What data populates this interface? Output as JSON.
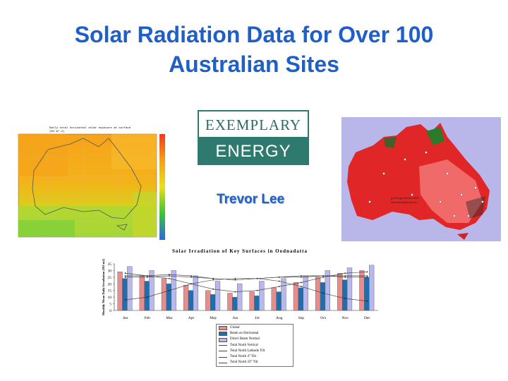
{
  "slide": {
    "title_line1": "Solar Radiation Data for Over 100",
    "title_line2": "Australian Sites",
    "author": "Trevor Lee",
    "title_color": "#1f5fc8"
  },
  "logo": {
    "top": "EXEMPLARY",
    "bottom": "ENERGY",
    "color": "#2e7a6e"
  },
  "left_map": {
    "heading_line1": "Daily total horizontal solar exposure at surface",
    "heading_line2": "(MJ m^-2)"
  },
  "right_map": {
    "credit_line1": "(c) Energy Partners 2006",
    "credit_line2": "www.exemplary.com.au"
  },
  "chart_data": {
    "type": "bar",
    "title": "Solar Irradiation of Key Surfaces in Oodnadatta",
    "ylabel": "Monthly Mean Daily Irradiation (MJ/m2)",
    "ylim": [
      0,
      35
    ],
    "yticks": [
      "0",
      "5",
      "10",
      "15",
      "20",
      "25",
      "30",
      "35"
    ],
    "categories": [
      "Jan",
      "Feb",
      "Mar",
      "Apr",
      "May",
      "Jun",
      "Jul",
      "Aug",
      "Sep",
      "Oct",
      "Nov",
      "Dec"
    ],
    "series": [
      {
        "name": "Global",
        "kind": "bar",
        "color": "#e88c8c",
        "values": [
          29,
          26,
          24,
          19,
          15,
          13,
          14,
          17,
          21,
          25,
          28,
          30
        ]
      },
      {
        "name": "Beam on Horizontal",
        "kind": "bar",
        "color": "#1f6fb0",
        "values": [
          24,
          22,
          20,
          15,
          12,
          10,
          11,
          14,
          17,
          21,
          23,
          25
        ]
      },
      {
        "name": "Direct Beam Normal",
        "kind": "bar",
        "color": "#b8b8ec",
        "values": [
          33,
          30,
          30,
          26,
          22,
          20,
          22,
          24,
          26,
          30,
          32,
          34
        ]
      },
      {
        "name": "Total North Vertical",
        "kind": "line",
        "values": [
          8,
          10,
          15,
          20,
          23,
          24,
          24,
          22,
          18,
          13,
          9,
          7
        ]
      },
      {
        "name": "Total North Latitude Tilt",
        "kind": "line",
        "values": [
          25,
          25,
          26,
          25,
          24,
          23,
          24,
          25,
          25,
          26,
          25,
          25
        ]
      },
      {
        "name": "Total North 4° Tilt",
        "kind": "line",
        "values": [
          28,
          26,
          24,
          20,
          16,
          14,
          15,
          18,
          21,
          25,
          28,
          29
        ]
      },
      {
        "name": "Total North 33° Tilt",
        "kind": "line",
        "values": [
          26,
          26,
          27,
          26,
          24,
          23,
          24,
          25,
          26,
          26,
          26,
          26
        ]
      }
    ]
  }
}
